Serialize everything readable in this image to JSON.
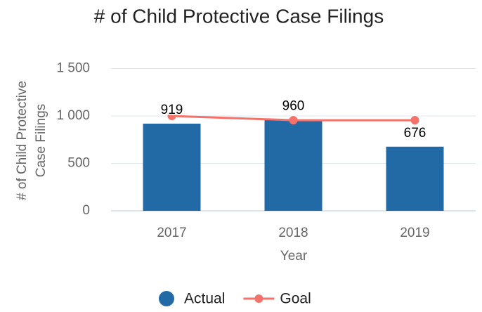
{
  "chart_data": {
    "type": "bar_line",
    "title": "# of Child Protective Case Filings",
    "x_label": "Year",
    "y_label": [
      "# of Child Protective",
      "Case Filings"
    ],
    "categories": [
      "2017",
      "2018",
      "2019"
    ],
    "series": [
      {
        "name": "Actual",
        "type": "bar",
        "color": "#226aa6",
        "values": [
          919,
          960,
          676
        ]
      },
      {
        "name": "Goal",
        "type": "line",
        "color": "#f4726a",
        "values": [
          1000,
          955,
          955
        ]
      }
    ],
    "ylim": [
      0,
      1500
    ],
    "yticks": [
      0,
      500,
      {
        "value": 1000,
        "label": "1 000"
      },
      {
        "value": 1500,
        "label": "1 500"
      }
    ],
    "grid": true,
    "legend": "bottom"
  }
}
